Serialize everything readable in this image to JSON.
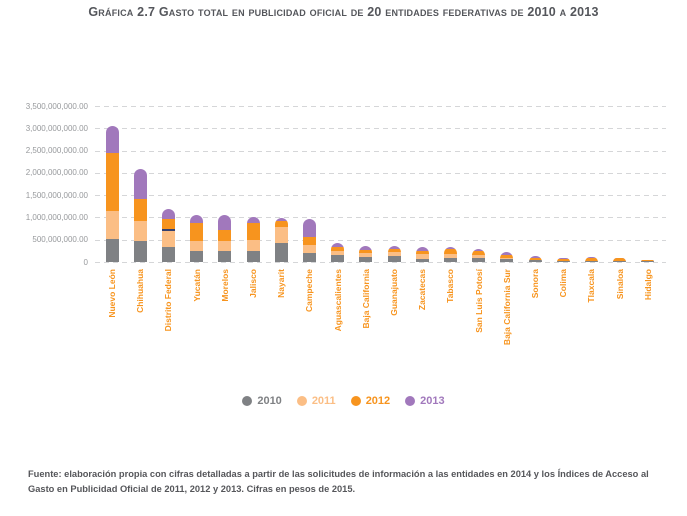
{
  "title": "Gráfica 2.7 Gasto total en publicidad oficial de 20 entidades federativas de 2010 a 2013",
  "footer": "Fuente: elaboración propia con cifras detalladas a partir de las solicitudes de información a las entidades en 2014 y los Índices de Acceso al Gasto en Publicidad Oficial de 2011, 2012 y 2013. Cifras en pesos de 2015.",
  "colors": {
    "title_text": "#54565b",
    "axis_label_text": "#97999c",
    "category_label_text": "#f7941e",
    "gridline": "#d5d6d8",
    "series_2010": "#7f8184",
    "series_2011": "#fbbe85",
    "series_2012": "#f7941e",
    "series_2013": "#a178bc",
    "df_divider": "#35406f"
  },
  "legend": {
    "items": [
      {
        "label": "2010",
        "color": "#7f8184"
      },
      {
        "label": "2011",
        "color": "#fbbe85"
      },
      {
        "label": "2012",
        "color": "#f7941e"
      },
      {
        "label": "2013",
        "color": "#a178bc"
      }
    ]
  },
  "chart_data": {
    "type": "bar",
    "stacked": true,
    "title": "Gráfica 2.7 Gasto total en publicidad oficial de 20 entidades federativas de 2010 a 2013",
    "xlabel": "",
    "ylabel": "",
    "ylim": [
      0,
      3500000000
    ],
    "ytick_step": 500000000,
    "ytick_labels_top_to_bottom": [
      "3,500,000,000.00",
      "3,000,000,000.00",
      "2,500,000,000.00",
      "2,000,000,000.00",
      "1,500,000,000.00",
      "1,000,000,000.00",
      "500,000,000.00",
      "0"
    ],
    "grid": "horizontal-dashed",
    "legend_position": "bottom",
    "units": "pesos de 2015",
    "categories": [
      "Nuevo León",
      "Chihuahua",
      "Distrito Federal",
      "Yucatán",
      "Morelos",
      "Jalisco",
      "Nayarit",
      "Campeche",
      "Aguascalientes",
      "Baja California",
      "Guanajuato",
      "Zacatecas",
      "Tabasco",
      "San Luis Potosí",
      "Baja California Sur",
      "Sonora",
      "Colima",
      "Tlaxcala",
      "Sinaloa",
      "Hidalgo"
    ],
    "series": [
      {
        "name": "2010",
        "color": "#7f8184",
        "values": [
          510000000,
          480000000,
          370000000,
          240000000,
          255000000,
          240000000,
          430000000,
          205000000,
          160000000,
          105000000,
          125000000,
          70000000,
          100000000,
          85000000,
          65000000,
          40000000,
          20000000,
          15000000,
          20000000,
          28000000
        ]
      },
      {
        "name": "2011",
        "color": "#fbbe85",
        "values": [
          630000000,
          430000000,
          360000000,
          230000000,
          210000000,
          255000000,
          360000000,
          175000000,
          80000000,
          100000000,
          105000000,
          110000000,
          80000000,
          70000000,
          35000000,
          15000000,
          10000000,
          15000000,
          10000000,
          4000000
        ]
      },
      {
        "name": "2012",
        "color": "#f7941e",
        "values": [
          1310000000,
          510000000,
          240000000,
          400000000,
          255000000,
          375000000,
          130000000,
          185000000,
          90000000,
          65000000,
          60000000,
          70000000,
          105000000,
          90000000,
          50000000,
          40000000,
          40000000,
          60000000,
          50000000,
          6000000
        ]
      },
      {
        "name": "2013",
        "color": "#a178bc",
        "values": [
          600000000,
          660000000,
          210000000,
          190000000,
          330000000,
          150000000,
          70000000,
          395000000,
          100000000,
          90000000,
          65000000,
          90000000,
          60000000,
          50000000,
          80000000,
          35000000,
          30000000,
          20000000,
          15000000,
          2000000
        ]
      }
    ],
    "annotations": [
      {
        "category": "Distrito Federal",
        "type": "thin-dark-divider",
        "between": [
          "2011",
          "2012"
        ],
        "color": "#35406f"
      }
    ]
  }
}
